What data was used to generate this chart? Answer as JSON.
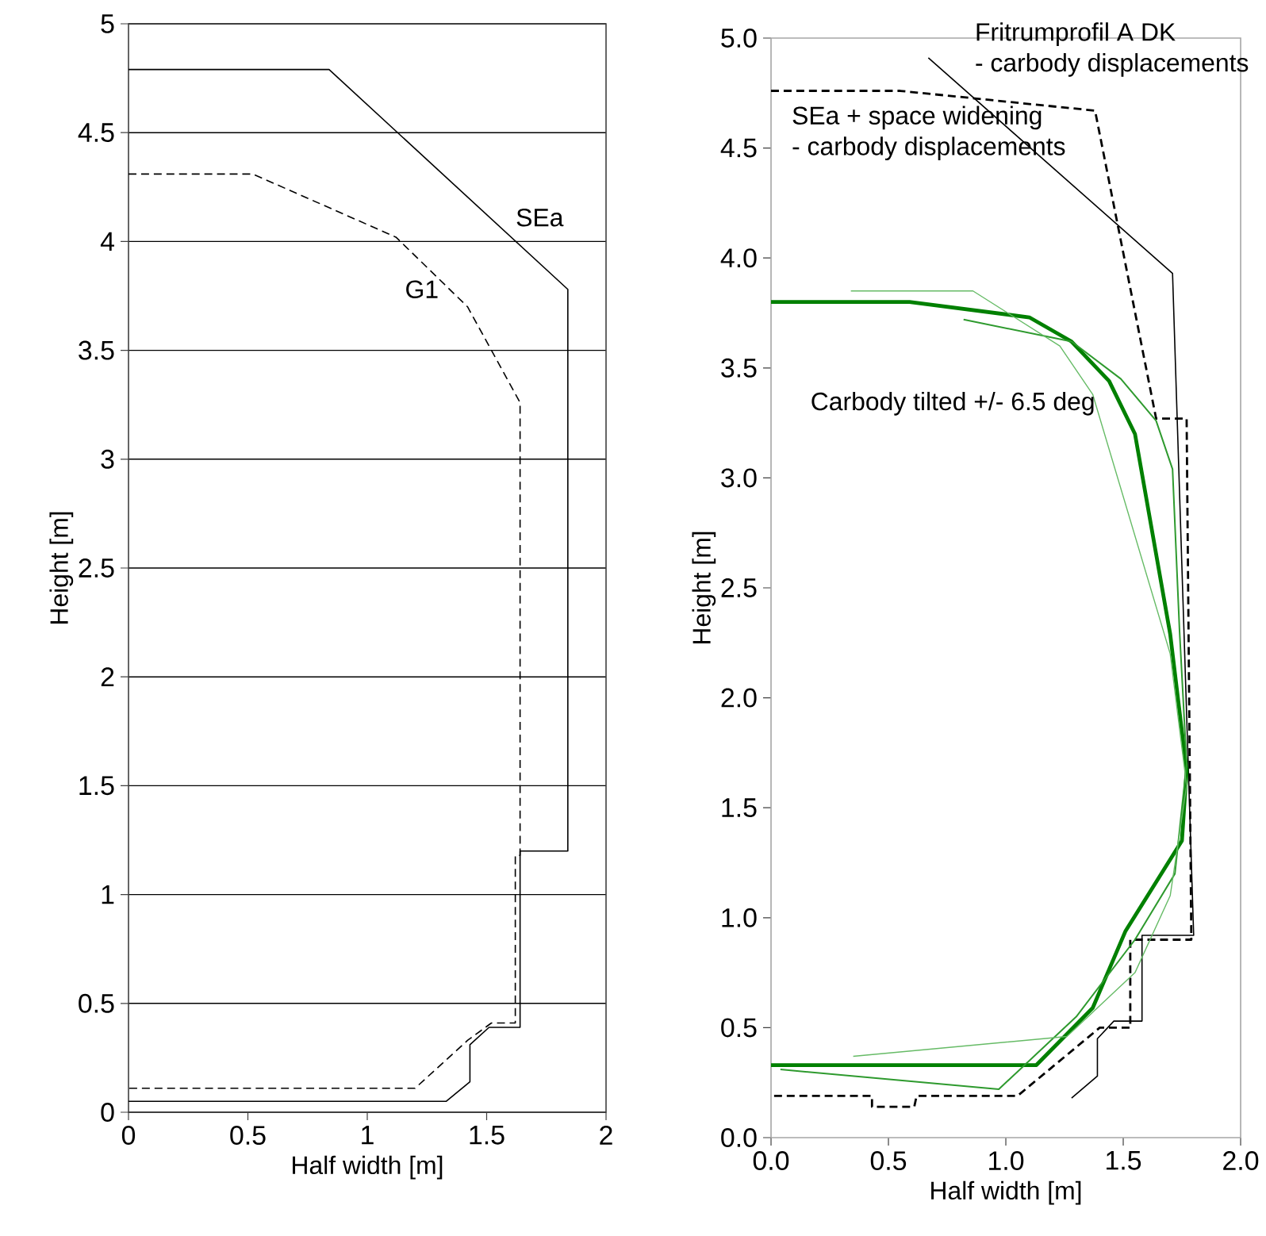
{
  "chart_data": [
    {
      "type": "line",
      "xlabel": "Half width [m]",
      "ylabel": "Height [m]",
      "xlim": [
        0,
        2
      ],
      "ylim": [
        0,
        5
      ],
      "xticks": [
        0,
        0.5,
        1,
        1.5,
        2
      ],
      "yticks": [
        0,
        0.5,
        1,
        1.5,
        2,
        2.5,
        3,
        3.5,
        4,
        4.5,
        5
      ],
      "grid": "y",
      "series": [
        {
          "name": "SEa",
          "color": "#000000",
          "line_style": "solid",
          "x": [
            0,
            0.84,
            1.84,
            1.84,
            1.64,
            1.64,
            1.51,
            1.43,
            1.43,
            1.33,
            0
          ],
          "values": [
            4.79,
            4.79,
            3.78,
            1.2,
            1.2,
            0.39,
            0.39,
            0.31,
            0.14,
            0.05,
            0.05
          ]
        },
        {
          "name": "G1",
          "color": "#000000",
          "line_style": "dashed",
          "x": [
            0,
            0.52,
            1.12,
            1.42,
            1.64,
            1.64,
            1.62,
            1.62,
            1.52,
            1.42,
            1.2,
            0
          ],
          "values": [
            4.31,
            4.31,
            4.02,
            3.7,
            3.26,
            1.18,
            1.18,
            0.41,
            0.41,
            0.33,
            0.11,
            0.11
          ]
        }
      ]
    },
    {
      "type": "line",
      "xlabel": "Half width [m]",
      "ylabel": "Height [m]",
      "xlim": [
        0,
        2
      ],
      "ylim": [
        0,
        5
      ],
      "xticks": [
        {
          "value": 0,
          "label": "0.0"
        },
        {
          "value": 0.5,
          "label": "0.5"
        },
        {
          "value": 1,
          "label": "1.0"
        },
        {
          "value": 1.5,
          "label": "1.5"
        },
        {
          "value": 2,
          "label": "2.0"
        }
      ],
      "yticks": [
        {
          "value": 0,
          "label": "0.0"
        },
        {
          "value": 0.5,
          "label": "0.5"
        },
        {
          "value": 1,
          "label": "1.0"
        },
        {
          "value": 1.5,
          "label": "1.5"
        },
        {
          "value": 2,
          "label": "2.0"
        },
        {
          "value": 2.5,
          "label": "2.5"
        },
        {
          "value": 3,
          "label": "3.0"
        },
        {
          "value": 3.5,
          "label": "3.5"
        },
        {
          "value": 4,
          "label": "4.0"
        },
        {
          "value": 4.5,
          "label": "4.5"
        },
        {
          "value": 5,
          "label": "5.0"
        }
      ],
      "annotations": [
        "- carbody displacements",
        "- carbody displacements",
        "Carbody tilted +/- 6.5 deg"
      ],
      "series": [
        {
          "name": "Fritrumprofil A DK",
          "color": "#000000",
          "line_style": "solid",
          "x": [
            0.67,
            1.71,
            1.8,
            1.58,
            1.58,
            1.46,
            1.39,
            1.39,
            1.28
          ],
          "values": [
            4.91,
            3.93,
            0.92,
            0.92,
            0.53,
            0.53,
            0.45,
            0.28,
            0.18
          ]
        },
        {
          "name": "SEa + space widening",
          "color": "#000000",
          "line_style": "dashed",
          "x": [
            0,
            0.55,
            1.38,
            1.64,
            1.77,
            1.79,
            1.53,
            1.53,
            1.4,
            1.05,
            0.62,
            0.61,
            0.43,
            0.43,
            0
          ],
          "values": [
            4.76,
            4.76,
            4.67,
            3.27,
            3.27,
            0.9,
            0.9,
            0.5,
            0.5,
            0.19,
            0.19,
            0.14,
            0.14,
            0.19,
            0.19
          ]
        },
        {
          "color": "#008000",
          "line_style": "solid",
          "x": [
            0,
            0.59,
            1.1,
            1.28,
            1.44,
            1.55,
            1.7,
            1.77,
            1.75,
            1.51,
            1.37,
            1.13,
            0
          ],
          "values": [
            3.8,
            3.8,
            3.73,
            3.62,
            3.44,
            3.2,
            2.29,
            1.67,
            1.35,
            0.94,
            0.59,
            0.33,
            0.33
          ]
        },
        {
          "color": "#2e9a2e",
          "line_style": "solid",
          "x": [
            0.82,
            1.28,
            1.49,
            1.64,
            1.71,
            1.74,
            1.77,
            1.72,
            1.55,
            1.3,
            0.97,
            0.04
          ],
          "values": [
            3.72,
            3.62,
            3.45,
            3.26,
            3.04,
            2.3,
            1.7,
            1.2,
            0.9,
            0.55,
            0.22,
            0.31
          ]
        },
        {
          "color": "#66bb66",
          "line_style": "solid",
          "x": [
            0.34,
            0.86,
            1.23,
            1.37,
            1.7,
            1.77,
            1.7,
            1.55,
            1.26,
            0.35
          ],
          "values": [
            3.85,
            3.85,
            3.6,
            3.38,
            2.2,
            1.6,
            1.1,
            0.75,
            0.46,
            0.37
          ]
        }
      ]
    }
  ]
}
